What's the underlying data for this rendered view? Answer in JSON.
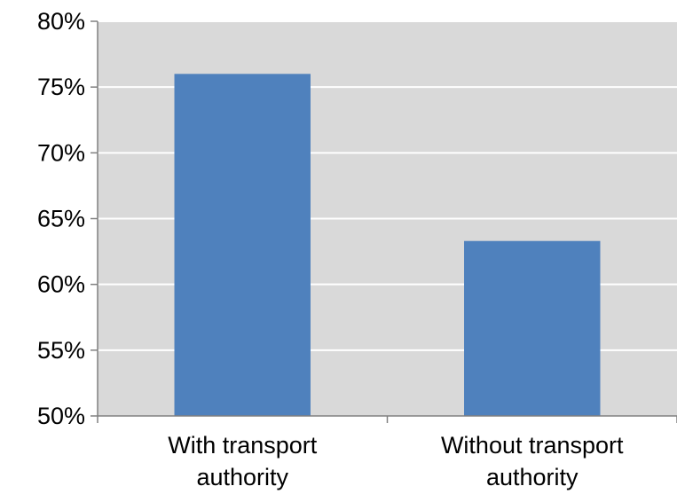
{
  "chart_data": {
    "type": "bar",
    "title": "",
    "xlabel": "",
    "ylabel": "",
    "categories": [
      [
        "With transport",
        "authority"
      ],
      [
        "Without transport",
        "authority"
      ]
    ],
    "values": [
      76,
      63.3
    ],
    "ylim": [
      50,
      80
    ],
    "yticks": [
      50,
      55,
      60,
      65,
      70,
      75,
      80
    ],
    "ytick_labels": [
      "50%",
      "55%",
      "60%",
      "65%",
      "70%",
      "75%",
      "80%"
    ],
    "grid": true,
    "legend": "none",
    "colors": {
      "bar": "#4f81bd",
      "plot_background": "#d9d9d9",
      "gridline": "#ffffff",
      "axis": "#808080"
    }
  }
}
